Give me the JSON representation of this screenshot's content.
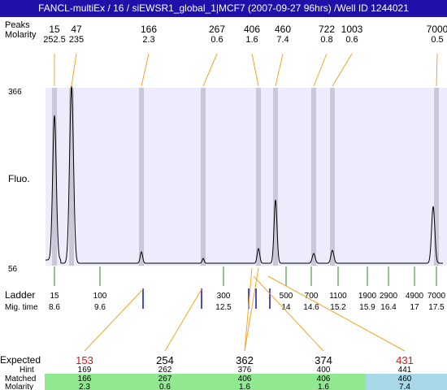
{
  "title": "FANCL-multiEx / 16 / siEWSR1_global_1|MCF7 (2007-09-27 96hrs) /Well ID 1244021",
  "header_labels": {
    "peaks": "Peaks",
    "molarity": "Molarity"
  },
  "peaks": [
    {
      "size": "15",
      "molarity": "252.5"
    },
    {
      "size": "47",
      "molarity": "235"
    },
    {
      "size": "166",
      "molarity": "2.3"
    },
    {
      "size": "267",
      "molarity": "0.6"
    },
    {
      "size": "406",
      "molarity": "1.6"
    },
    {
      "size": "460",
      "molarity": "7.4"
    },
    {
      "size": "722",
      "molarity": "0.8"
    },
    {
      "size": "1003",
      "molarity": "0.6"
    },
    {
      "size": "7000",
      "molarity": "0.5"
    }
  ],
  "y_axis": {
    "label": "Fluo.",
    "top": "366",
    "bottom": "56"
  },
  "ladder": {
    "label": "Ladder",
    "mig_label": "Mig. time",
    "items": [
      {
        "size": "15",
        "time": "8.6"
      },
      {
        "size": "100",
        "time": "9.6"
      },
      {
        "size": "300",
        "time": "12.5"
      },
      {
        "size": "500",
        "time": "14"
      },
      {
        "size": "700",
        "time": "14.6"
      },
      {
        "size": "1100",
        "time": "15.2"
      },
      {
        "size": "1900",
        "time": "15.9"
      },
      {
        "size": "2900",
        "time": "16.4"
      },
      {
        "size": "4900",
        "time": "17"
      },
      {
        "size": "7000",
        "time": "17.5"
      }
    ]
  },
  "expected": {
    "labels": {
      "expected": "Expected",
      "hint": "Hint",
      "matched": "Matched",
      "molarity": "Molarity"
    },
    "columns": [
      {
        "expected": "153",
        "hint": "169",
        "matched": "166",
        "molarity": "2.3",
        "status": "mismatch"
      },
      {
        "expected": "254",
        "hint": "262",
        "matched": "267",
        "molarity": "0.6",
        "status": "match"
      },
      {
        "expected": "362",
        "hint": "376",
        "matched": "406",
        "molarity": "1.6",
        "status": "match"
      },
      {
        "expected": "374",
        "hint": "400",
        "matched": "406",
        "molarity": "1.6",
        "status": "match"
      },
      {
        "expected": "431",
        "hint": "441",
        "matched": "460",
        "molarity": "7.4",
        "status": "mismatch"
      }
    ]
  },
  "colors": {
    "title_bg": "#1e10a8",
    "plot_bg": "#ececfc",
    "peak_band": "#c8c8d8",
    "connector": "#f5a623",
    "ladder_tick": "#2a8a2a",
    "marker": "#1010c0",
    "match_green": "#90e890",
    "mismatch_blue": "#a8d8e8",
    "mismatch_text": "#e01010"
  }
}
